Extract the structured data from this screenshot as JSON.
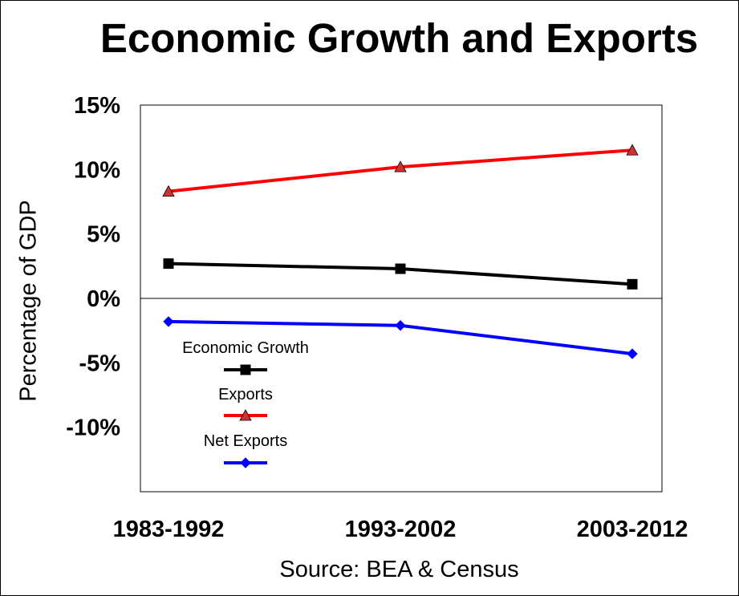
{
  "chart_data": {
    "type": "line",
    "title": "Economic Growth and Exports",
    "ylabel": "Percentage of GDP",
    "xlabel": "",
    "source": "Source: BEA & Census",
    "categories": [
      "1983-1992",
      "1993-2002",
      "2003-2012"
    ],
    "ylim": [
      -15,
      15
    ],
    "yticks": [
      15,
      10,
      5,
      0,
      -5,
      -10
    ],
    "ytick_labels": [
      "15%",
      "10%",
      "5%",
      "0%",
      "-5%",
      "-10%"
    ],
    "grid": false,
    "legend_placement": "inside lower-left",
    "series": [
      {
        "name": "Economic Growth",
        "values": [
          2.7,
          2.3,
          1.1
        ],
        "color": "#000000",
        "marker": "square"
      },
      {
        "name": "Exports",
        "values": [
          8.3,
          10.2,
          11.5
        ],
        "color": "#ff0000",
        "marker": "triangle"
      },
      {
        "name": "Net Exports",
        "values": [
          -1.8,
          -2.1,
          -4.3
        ],
        "color": "#0000ff",
        "marker": "diamond"
      }
    ]
  }
}
